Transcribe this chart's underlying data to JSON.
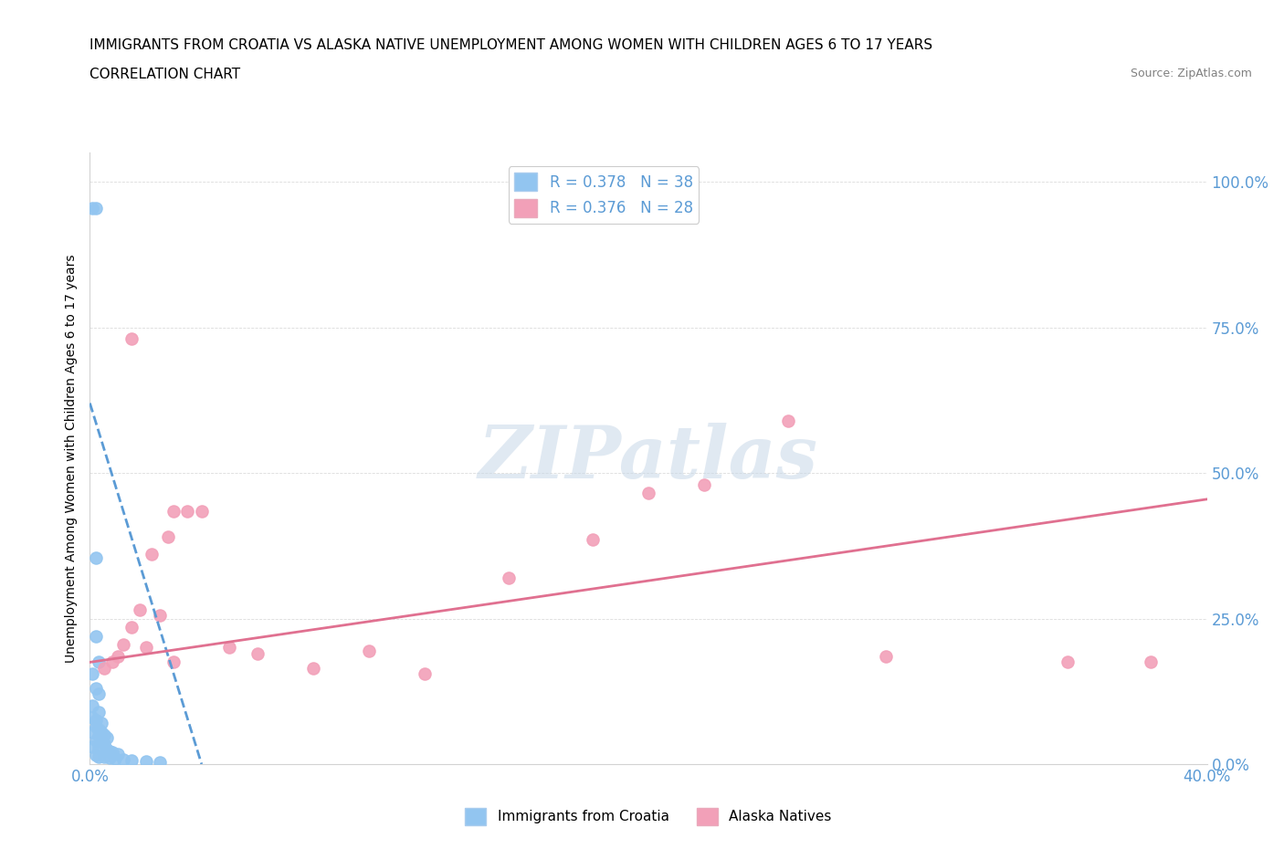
{
  "title": "IMMIGRANTS FROM CROATIA VS ALASKA NATIVE UNEMPLOYMENT AMONG WOMEN WITH CHILDREN AGES 6 TO 17 YEARS",
  "subtitle": "CORRELATION CHART",
  "source": "Source: ZipAtlas.com",
  "ylabel": "Unemployment Among Women with Children Ages 6 to 17 years",
  "xlim": [
    0.0,
    0.4
  ],
  "ylim": [
    0.0,
    1.05
  ],
  "xtick_positions": [
    0.0,
    0.05,
    0.1,
    0.15,
    0.2,
    0.25,
    0.3,
    0.35,
    0.4
  ],
  "xticklabels": [
    "0.0%",
    "",
    "",
    "",
    "",
    "",
    "",
    "",
    "40.0%"
  ],
  "ytick_positions": [
    0.0,
    0.25,
    0.5,
    0.75,
    1.0
  ],
  "yticklabels_right": [
    "0.0%",
    "25.0%",
    "50.0%",
    "75.0%",
    "100.0%"
  ],
  "watermark": "ZIPatlas",
  "legend_r1": "R = 0.378   N = 38",
  "legend_r2": "R = 0.376   N = 28",
  "blue_color": "#92C5F0",
  "pink_color": "#F2A0B8",
  "blue_line_color": "#5B9BD5",
  "pink_line_color": "#E07090",
  "tick_color": "#5B9BD5",
  "scatter_blue": [
    [
      0.001,
      0.955
    ],
    [
      0.002,
      0.955
    ],
    [
      0.002,
      0.355
    ],
    [
      0.002,
      0.22
    ],
    [
      0.003,
      0.175
    ],
    [
      0.001,
      0.155
    ],
    [
      0.002,
      0.13
    ],
    [
      0.003,
      0.12
    ],
    [
      0.001,
      0.1
    ],
    [
      0.003,
      0.09
    ],
    [
      0.001,
      0.08
    ],
    [
      0.002,
      0.075
    ],
    [
      0.004,
      0.07
    ],
    [
      0.002,
      0.065
    ],
    [
      0.003,
      0.06
    ],
    [
      0.001,
      0.055
    ],
    [
      0.004,
      0.055
    ],
    [
      0.005,
      0.05
    ],
    [
      0.003,
      0.048
    ],
    [
      0.006,
      0.045
    ],
    [
      0.002,
      0.04
    ],
    [
      0.004,
      0.038
    ],
    [
      0.005,
      0.035
    ],
    [
      0.001,
      0.03
    ],
    [
      0.003,
      0.028
    ],
    [
      0.006,
      0.025
    ],
    [
      0.007,
      0.022
    ],
    [
      0.008,
      0.02
    ],
    [
      0.01,
      0.018
    ],
    [
      0.002,
      0.015
    ],
    [
      0.003,
      0.013
    ],
    [
      0.005,
      0.012
    ],
    [
      0.007,
      0.011
    ],
    [
      0.009,
      0.01
    ],
    [
      0.012,
      0.008
    ],
    [
      0.015,
      0.007
    ],
    [
      0.02,
      0.005
    ],
    [
      0.025,
      0.003
    ]
  ],
  "scatter_pink": [
    [
      0.015,
      0.73
    ],
    [
      0.03,
      0.435
    ],
    [
      0.035,
      0.435
    ],
    [
      0.04,
      0.435
    ],
    [
      0.028,
      0.39
    ],
    [
      0.022,
      0.36
    ],
    [
      0.018,
      0.265
    ],
    [
      0.025,
      0.255
    ],
    [
      0.015,
      0.235
    ],
    [
      0.012,
      0.205
    ],
    [
      0.02,
      0.2
    ],
    [
      0.01,
      0.185
    ],
    [
      0.008,
      0.175
    ],
    [
      0.03,
      0.175
    ],
    [
      0.005,
      0.165
    ],
    [
      0.05,
      0.2
    ],
    [
      0.06,
      0.19
    ],
    [
      0.1,
      0.195
    ],
    [
      0.08,
      0.165
    ],
    [
      0.12,
      0.155
    ],
    [
      0.15,
      0.32
    ],
    [
      0.18,
      0.385
    ],
    [
      0.2,
      0.465
    ],
    [
      0.25,
      0.59
    ],
    [
      0.22,
      0.48
    ],
    [
      0.285,
      0.185
    ],
    [
      0.35,
      0.175
    ],
    [
      0.38,
      0.175
    ]
  ],
  "blue_trendline": [
    [
      0.0,
      0.62
    ],
    [
      0.04,
      0.0
    ]
  ],
  "pink_trendline": [
    [
      0.0,
      0.175
    ],
    [
      0.4,
      0.455
    ]
  ]
}
